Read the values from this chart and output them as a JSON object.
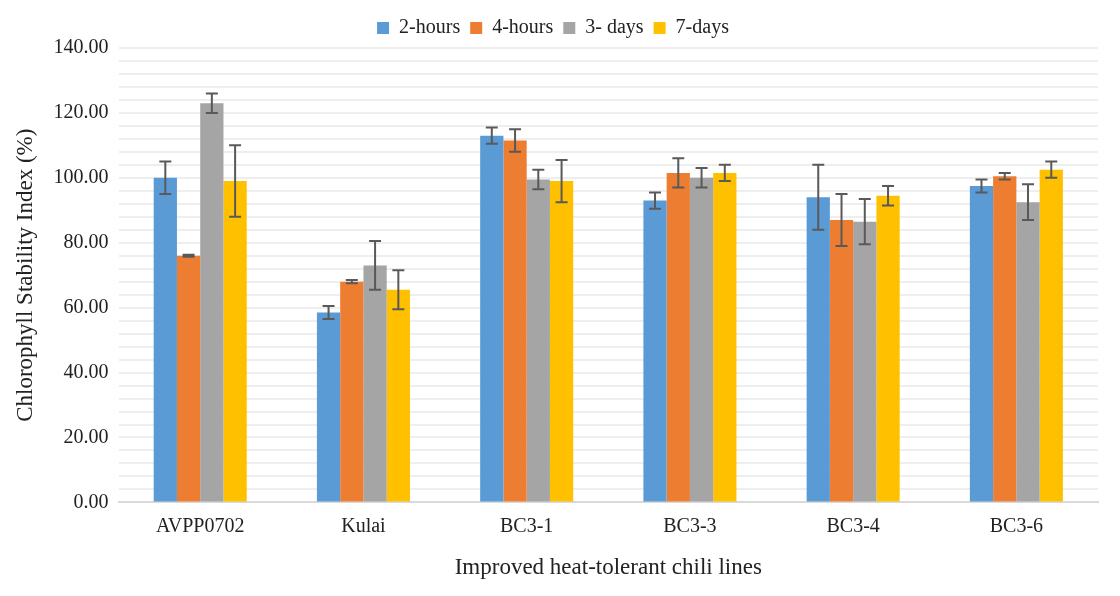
{
  "chart_data": {
    "type": "bar",
    "xlabel": "Improved heat-tolerant chili lines",
    "ylabel": "Chlorophyll Stability Index (%)",
    "categories": [
      "AVPP0702",
      "Kulai",
      "BC3-1",
      "BC3-3",
      "BC3-4",
      "BC3-6"
    ],
    "series": [
      {
        "name": "2-hours",
        "color": "#5b9bd5",
        "values": [
          100,
          58.5,
          113,
          93,
          94,
          97.5
        ],
        "errors": [
          5,
          2,
          2.5,
          2.5,
          10,
          2
        ]
      },
      {
        "name": "4-hours",
        "color": "#ed7d31",
        "values": [
          76,
          68,
          111.5,
          101.5,
          87,
          100.5
        ],
        "errors": [
          0.3,
          0.5,
          3.5,
          4.5,
          8,
          1
        ]
      },
      {
        "name": "3- days",
        "color": "#a5a5a5",
        "values": [
          123,
          73,
          99.5,
          100,
          86.5,
          92.5
        ],
        "errors": [
          3,
          7.5,
          3,
          3,
          7,
          5.5
        ]
      },
      {
        "name": "7-days",
        "color": "#ffc000",
        "values": [
          99,
          65.5,
          99,
          101.5,
          94.5,
          102.5
        ],
        "errors": [
          11,
          6,
          6.5,
          2.5,
          3,
          2.5
        ]
      }
    ],
    "ylim": [
      0,
      140
    ],
    "yticks": [
      {
        "value": 0,
        "label": "0.00"
      },
      {
        "value": 4,
        "label": null
      },
      {
        "value": 8,
        "label": null
      },
      {
        "value": 12,
        "label": null
      },
      {
        "value": 16,
        "label": null
      },
      {
        "value": 20,
        "label": "20.00"
      },
      {
        "value": 24,
        "label": null
      },
      {
        "value": 28,
        "label": null
      },
      {
        "value": 32,
        "label": null
      },
      {
        "value": 36,
        "label": null
      },
      {
        "value": 40,
        "label": "40.00"
      },
      {
        "value": 44,
        "label": null
      },
      {
        "value": 48,
        "label": null
      },
      {
        "value": 52,
        "label": null
      },
      {
        "value": 56,
        "label": null
      },
      {
        "value": 60,
        "label": "60.00"
      },
      {
        "value": 64,
        "label": null
      },
      {
        "value": 68,
        "label": null
      },
      {
        "value": 72,
        "label": null
      },
      {
        "value": 76,
        "label": null
      },
      {
        "value": 80,
        "label": "80.00"
      },
      {
        "value": 84,
        "label": null
      },
      {
        "value": 88,
        "label": null
      },
      {
        "value": 92,
        "label": null
      },
      {
        "value": 96,
        "label": null
      },
      {
        "value": 100,
        "label": "100.00"
      },
      {
        "value": 104,
        "label": null
      },
      {
        "value": 108,
        "label": null
      },
      {
        "value": 112,
        "label": null
      },
      {
        "value": 116,
        "label": null
      },
      {
        "value": 120,
        "label": "120.00"
      },
      {
        "value": 124,
        "label": null
      },
      {
        "value": 128,
        "label": null
      },
      {
        "value": 132,
        "label": null
      },
      {
        "value": 136,
        "label": null
      },
      {
        "value": 140,
        "label": "140.00"
      }
    ],
    "grid": "y",
    "legend": "top"
  }
}
